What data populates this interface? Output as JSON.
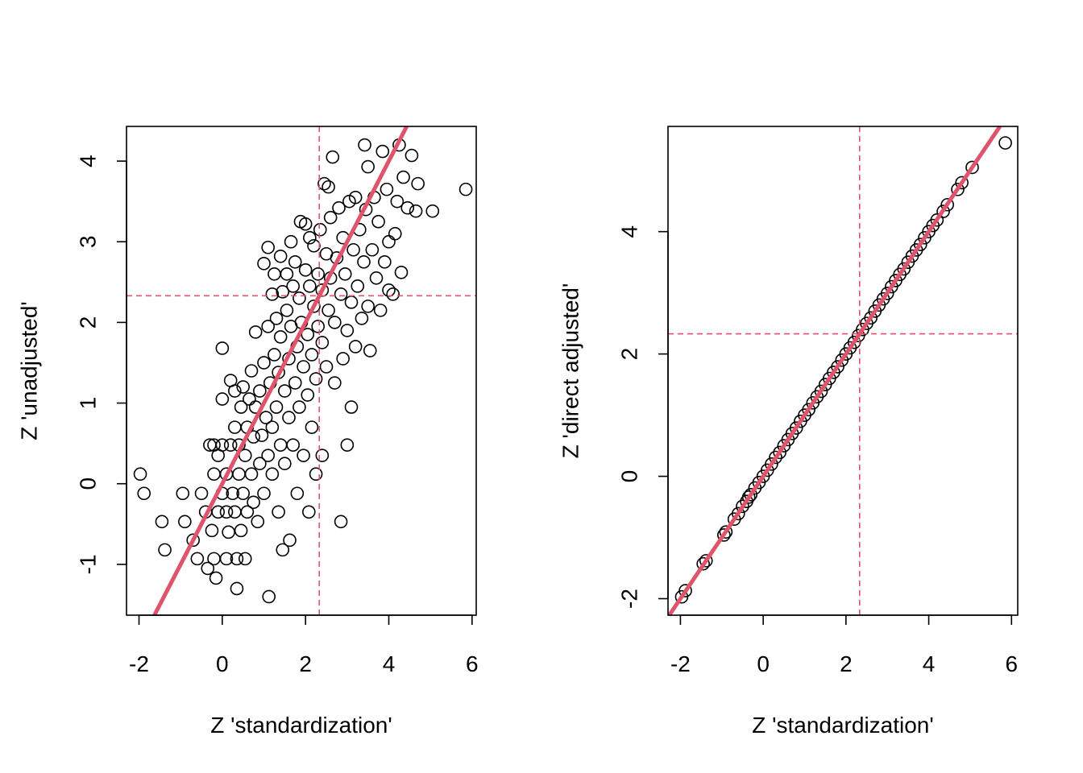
{
  "style": {
    "point_color": "#000000",
    "fit_line_color": "#DF536B",
    "reference_line_color": "#DF536B"
  },
  "chart_data": [
    {
      "type": "scatter",
      "title": "",
      "xlabel": "Z 'standardization'",
      "ylabel": "Z 'unadjusted'",
      "xlim": [
        -2.3,
        6.1
      ],
      "ylim": [
        -1.63,
        4.43
      ],
      "x_ticks": [
        -2,
        0,
        2,
        4,
        6
      ],
      "y_ticks": [
        -1,
        0,
        1,
        2,
        3,
        4
      ],
      "x_tick_labels": [
        "-2",
        "0",
        "2",
        "4",
        "6"
      ],
      "y_tick_labels": [
        "-1",
        "0",
        "1",
        "2",
        "3",
        "4"
      ],
      "reference_lines": {
        "vertical_x": 2.33,
        "horizontal_y": 2.33,
        "style": "dashed"
      },
      "fit_line": {
        "slope": 1.0,
        "intercept": 0.0,
        "style": "solid, thick"
      },
      "grid": false,
      "legend": "none",
      "points": [
        [
          -1.97,
          0.12
        ],
        [
          -1.88,
          -0.12
        ],
        [
          -1.45,
          -0.47
        ],
        [
          -1.38,
          -0.82
        ],
        [
          -0.95,
          -0.12
        ],
        [
          -0.9,
          -0.47
        ],
        [
          -0.7,
          -0.7
        ],
        [
          -0.6,
          -0.93
        ],
        [
          -0.5,
          -0.12
        ],
        [
          -0.4,
          -0.35
        ],
        [
          -0.35,
          -1.05
        ],
        [
          -0.3,
          0.48
        ],
        [
          -0.25,
          -0.58
        ],
        [
          -0.2,
          -0.93
        ],
        [
          -0.2,
          0.12
        ],
        [
          -0.2,
          0.48
        ],
        [
          -0.15,
          -1.17
        ],
        [
          -0.1,
          -0.35
        ],
        [
          -0.1,
          0.35
        ],
        [
          0.0,
          -0.12
        ],
        [
          0.0,
          0.48
        ],
        [
          0.0,
          1.05
        ],
        [
          0.0,
          1.68
        ],
        [
          0.1,
          -0.35
        ],
        [
          0.1,
          0.12
        ],
        [
          0.1,
          -0.93
        ],
        [
          0.15,
          -0.6
        ],
        [
          0.2,
          0.48
        ],
        [
          0.2,
          1.28
        ],
        [
          0.25,
          -0.12
        ],
        [
          0.3,
          -0.35
        ],
        [
          0.3,
          0.7
        ],
        [
          0.3,
          1.15
        ],
        [
          0.35,
          -0.93
        ],
        [
          0.35,
          -1.3
        ],
        [
          0.4,
          0.12
        ],
        [
          0.4,
          0.48
        ],
        [
          0.45,
          -0.58
        ],
        [
          0.45,
          0.95
        ],
        [
          0.5,
          1.2
        ],
        [
          0.5,
          -0.12
        ],
        [
          0.55,
          -0.93
        ],
        [
          0.55,
          0.35
        ],
        [
          0.6,
          0.7
        ],
        [
          0.6,
          -0.35
        ],
        [
          0.65,
          1.05
        ],
        [
          0.7,
          0.12
        ],
        [
          0.7,
          1.4
        ],
        [
          0.75,
          -0.23
        ],
        [
          0.75,
          0.58
        ],
        [
          0.8,
          0.95
        ],
        [
          0.8,
          1.88
        ],
        [
          0.85,
          -0.47
        ],
        [
          0.9,
          0.25
        ],
        [
          0.9,
          1.15
        ],
        [
          0.95,
          0.6
        ],
        [
          1.0,
          1.5
        ],
        [
          1.0,
          2.73
        ],
        [
          1.0,
          -0.12
        ],
        [
          1.05,
          0.82
        ],
        [
          1.1,
          0.35
        ],
        [
          1.1,
          1.95
        ],
        [
          1.1,
          2.93
        ],
        [
          1.12,
          -1.4
        ],
        [
          1.15,
          1.25
        ],
        [
          1.2,
          0.12
        ],
        [
          1.2,
          0.7
        ],
        [
          1.2,
          2.35
        ],
        [
          1.25,
          1.6
        ],
        [
          1.25,
          2.6
        ],
        [
          1.3,
          0.95
        ],
        [
          1.3,
          2.05
        ],
        [
          1.35,
          -0.35
        ],
        [
          1.35,
          1.38
        ],
        [
          1.4,
          0.48
        ],
        [
          1.4,
          1.82
        ],
        [
          1.4,
          2.82
        ],
        [
          1.45,
          2.38
        ],
        [
          1.45,
          -0.82
        ],
        [
          1.5,
          1.15
        ],
        [
          1.5,
          0.25
        ],
        [
          1.55,
          2.15
        ],
        [
          1.55,
          2.6
        ],
        [
          1.6,
          0.82
        ],
        [
          1.6,
          1.55
        ],
        [
          1.62,
          -0.7
        ],
        [
          1.65,
          1.95
        ],
        [
          1.65,
          3.0
        ],
        [
          1.7,
          0.48
        ],
        [
          1.7,
          2.45
        ],
        [
          1.75,
          1.25
        ],
        [
          1.75,
          2.75
        ],
        [
          1.8,
          -0.12
        ],
        [
          1.8,
          1.7
        ],
        [
          1.85,
          0.95
        ],
        [
          1.85,
          2.3
        ],
        [
          1.88,
          3.25
        ],
        [
          1.9,
          2.0
        ],
        [
          1.95,
          1.45
        ],
        [
          1.95,
          0.35
        ],
        [
          2.0,
          2.65
        ],
        [
          2.0,
          3.22
        ],
        [
          2.05,
          1.1
        ],
        [
          2.05,
          1.85
        ],
        [
          2.08,
          -0.35
        ],
        [
          2.1,
          2.45
        ],
        [
          2.1,
          3.05
        ],
        [
          2.15,
          0.7
        ],
        [
          2.15,
          1.6
        ],
        [
          2.2,
          2.2
        ],
        [
          2.2,
          2.95
        ],
        [
          2.25,
          1.3
        ],
        [
          2.25,
          0.12
        ],
        [
          2.3,
          2.6
        ],
        [
          2.3,
          1.95
        ],
        [
          2.35,
          3.15
        ],
        [
          2.4,
          0.35
        ],
        [
          2.4,
          1.75
        ],
        [
          2.4,
          2.4
        ],
        [
          2.45,
          3.72
        ],
        [
          2.5,
          2.85
        ],
        [
          2.5,
          1.45
        ],
        [
          2.55,
          3.68
        ],
        [
          2.55,
          2.15
        ],
        [
          2.6,
          2.55
        ],
        [
          2.6,
          3.3
        ],
        [
          2.65,
          4.05
        ],
        [
          2.7,
          1.25
        ],
        [
          2.7,
          2.0
        ],
        [
          2.75,
          2.8
        ],
        [
          2.8,
          3.42
        ],
        [
          2.85,
          -0.47
        ],
        [
          2.85,
          2.35
        ],
        [
          2.9,
          1.55
        ],
        [
          2.9,
          3.05
        ],
        [
          2.95,
          2.6
        ],
        [
          3.0,
          0.48
        ],
        [
          3.0,
          1.9
        ],
        [
          3.05,
          3.5
        ],
        [
          3.1,
          2.25
        ],
        [
          3.1,
          0.95
        ],
        [
          3.15,
          2.9
        ],
        [
          3.2,
          1.7
        ],
        [
          3.2,
          3.55
        ],
        [
          3.25,
          2.45
        ],
        [
          3.3,
          3.15
        ],
        [
          3.35,
          2.05
        ],
        [
          3.4,
          2.75
        ],
        [
          3.42,
          4.2
        ],
        [
          3.45,
          3.4
        ],
        [
          3.5,
          2.2
        ],
        [
          3.5,
          3.93
        ],
        [
          3.55,
          1.65
        ],
        [
          3.6,
          2.9
        ],
        [
          3.65,
          3.55
        ],
        [
          3.7,
          2.55
        ],
        [
          3.75,
          3.25
        ],
        [
          3.8,
          2.15
        ],
        [
          3.85,
          4.12
        ],
        [
          3.9,
          2.75
        ],
        [
          3.95,
          3.65
        ],
        [
          4.0,
          2.4
        ],
        [
          4.0,
          3.0
        ],
        [
          4.1,
          2.35
        ],
        [
          4.15,
          3.1
        ],
        [
          4.2,
          3.5
        ],
        [
          4.25,
          4.2
        ],
        [
          4.3,
          2.62
        ],
        [
          4.35,
          3.8
        ],
        [
          4.45,
          3.42
        ],
        [
          4.55,
          4.07
        ],
        [
          4.65,
          3.38
        ],
        [
          4.7,
          3.72
        ],
        [
          5.05,
          3.38
        ],
        [
          5.85,
          3.65
        ]
      ]
    },
    {
      "type": "scatter",
      "title": "",
      "xlabel": "Z 'standardization'",
      "ylabel": "Z 'direct adjusted'",
      "xlim": [
        -2.3,
        6.15
      ],
      "ylim": [
        -2.27,
        5.72
      ],
      "x_ticks": [
        -2,
        0,
        2,
        4,
        6
      ],
      "y_ticks": [
        -2,
        0,
        2,
        4
      ],
      "x_tick_labels": [
        "-2",
        "0",
        "2",
        "4",
        "6"
      ],
      "y_tick_labels": [
        "-2",
        "0",
        "2",
        "4"
      ],
      "reference_lines": {
        "vertical_x": 2.33,
        "horizontal_y": 2.33,
        "style": "dashed"
      },
      "fit_line": {
        "slope": 1.0,
        "intercept": 0.0,
        "style": "solid, thick"
      },
      "grid": false,
      "legend": "none",
      "points": [
        [
          -1.97,
          -1.97
        ],
        [
          -1.88,
          -1.87
        ],
        [
          -1.45,
          -1.43
        ],
        [
          -1.38,
          -1.38
        ],
        [
          -0.95,
          -0.96
        ],
        [
          -0.9,
          -0.91
        ],
        [
          -0.7,
          -0.7
        ],
        [
          -0.6,
          -0.61
        ],
        [
          -0.5,
          -0.49
        ],
        [
          -0.4,
          -0.41
        ],
        [
          -0.35,
          -0.34
        ],
        [
          -0.3,
          -0.3
        ],
        [
          -0.2,
          -0.19
        ],
        [
          -0.1,
          -0.1
        ],
        [
          0.0,
          0.0
        ],
        [
          0.1,
          0.1
        ],
        [
          0.2,
          0.2
        ],
        [
          0.3,
          0.31
        ],
        [
          0.4,
          0.39
        ],
        [
          0.5,
          0.5
        ],
        [
          0.6,
          0.6
        ],
        [
          0.7,
          0.7
        ],
        [
          0.8,
          0.79
        ],
        [
          0.9,
          0.9
        ],
        [
          1.0,
          1.0
        ],
        [
          1.1,
          1.09
        ],
        [
          1.2,
          1.2
        ],
        [
          1.3,
          1.3
        ],
        [
          1.4,
          1.39
        ],
        [
          1.5,
          1.5
        ],
        [
          1.6,
          1.6
        ],
        [
          1.7,
          1.7
        ],
        [
          1.8,
          1.79
        ],
        [
          1.9,
          1.9
        ],
        [
          2.0,
          2.0
        ],
        [
          2.1,
          2.1
        ],
        [
          2.2,
          2.19
        ],
        [
          2.3,
          2.3
        ],
        [
          2.4,
          2.4
        ],
        [
          2.5,
          2.5
        ],
        [
          2.6,
          2.59
        ],
        [
          2.7,
          2.7
        ],
        [
          2.8,
          2.8
        ],
        [
          2.9,
          2.9
        ],
        [
          3.0,
          2.99
        ],
        [
          3.1,
          3.1
        ],
        [
          3.2,
          3.2
        ],
        [
          3.3,
          3.3
        ],
        [
          3.4,
          3.39
        ],
        [
          3.5,
          3.5
        ],
        [
          3.6,
          3.6
        ],
        [
          3.7,
          3.7
        ],
        [
          3.8,
          3.79
        ],
        [
          3.9,
          3.9
        ],
        [
          4.0,
          4.0
        ],
        [
          4.1,
          4.1
        ],
        [
          4.2,
          4.19
        ],
        [
          4.35,
          4.33
        ],
        [
          4.45,
          4.44
        ],
        [
          4.7,
          4.69
        ],
        [
          4.8,
          4.8
        ],
        [
          5.05,
          5.05
        ],
        [
          5.85,
          5.45
        ]
      ]
    }
  ]
}
